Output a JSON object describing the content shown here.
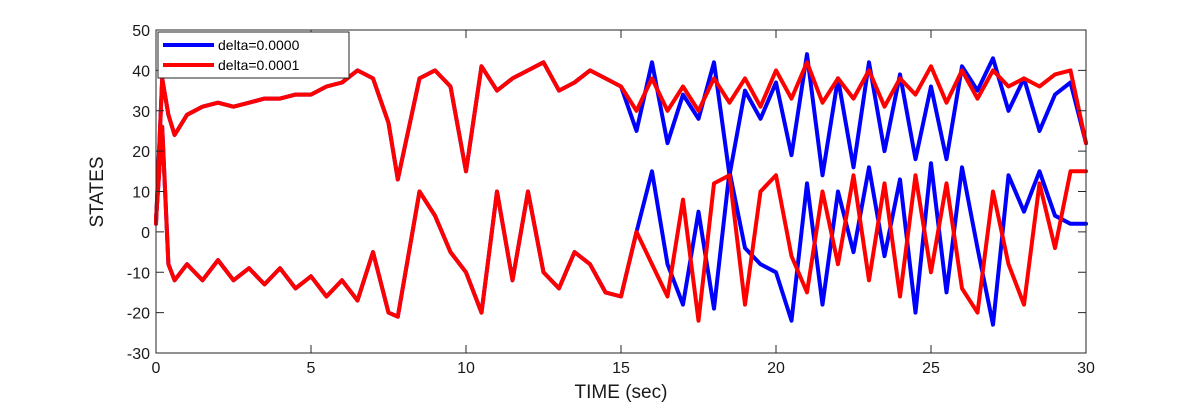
{
  "chart_data": {
    "type": "line",
    "title": "",
    "xlabel": "TIME (sec)",
    "ylabel": "STATES",
    "xlim": [
      0,
      30
    ],
    "ylim": [
      -30,
      50
    ],
    "xticks": [
      0,
      5,
      10,
      15,
      20,
      25,
      30
    ],
    "yticks": [
      -30,
      -20,
      -10,
      0,
      10,
      20,
      30,
      40,
      50
    ],
    "grid": false,
    "legend_position": "top-left",
    "series": [
      {
        "name": "delta=0.0000",
        "color": "#0000ff",
        "approx_traces": [
          {
            "x": [
              0,
              0.2,
              0.4,
              0.6,
              1.0,
              1.5,
              2.0,
              2.5,
              3.0,
              3.5,
              4.0,
              4.5,
              5.0,
              5.5,
              6.0,
              6.5,
              7.0,
              7.5,
              7.8,
              8.5,
              9.0,
              9.5,
              10.0,
              10.5,
              11.0,
              11.5,
              12.0,
              12.5,
              13.0,
              13.5,
              14.0,
              14.5,
              15.0,
              15.5,
              16.0,
              16.5,
              17.0,
              17.5,
              18.0,
              18.5,
              19.0,
              19.5,
              20.0,
              20.5,
              21.0,
              21.5,
              22.0,
              22.5,
              23.0,
              23.5,
              24.0,
              24.5,
              25.0,
              25.5,
              26.0,
              26.5,
              27.0,
              27.5,
              28.0,
              28.5,
              29.0,
              29.5,
              30.0
            ],
            "y": [
              2,
              38,
              29,
              24,
              29,
              31,
              32,
              31,
              32,
              33,
              33,
              34,
              34,
              36,
              37,
              40,
              38,
              27,
              13,
              38,
              40,
              36,
              15,
              41,
              35,
              38,
              40,
              42,
              35,
              37,
              40,
              38,
              36,
              25,
              42,
              22,
              34,
              28,
              42,
              14,
              35,
              28,
              37,
              19,
              44,
              14,
              38,
              16,
              42,
              20,
              39,
              18,
              36,
              18,
              41,
              35,
              43,
              30,
              38,
              25,
              34,
              37,
              22
            ]
          },
          {
            "x": [
              0,
              0.2,
              0.4,
              0.6,
              1.0,
              1.5,
              2.0,
              2.5,
              3.0,
              3.5,
              4.0,
              4.5,
              5.0,
              5.5,
              6.0,
              6.5,
              7.0,
              7.5,
              7.8,
              8.5,
              9.0,
              9.5,
              10.0,
              10.5,
              11.0,
              11.5,
              12.0,
              12.5,
              13.0,
              13.5,
              14.0,
              14.5,
              15.0,
              15.5,
              16.0,
              16.5,
              17.0,
              17.5,
              18.0,
              18.5,
              19.0,
              19.5,
              20.0,
              20.5,
              21.0,
              21.5,
              22.0,
              22.5,
              23.0,
              23.5,
              24.0,
              24.5,
              25.0,
              25.5,
              26.0,
              26.5,
              27.0,
              27.5,
              28.0,
              28.5,
              29.0,
              29.5,
              30.0
            ],
            "y": [
              3,
              26,
              -8,
              -12,
              -8,
              -12,
              -7,
              -12,
              -9,
              -13,
              -9,
              -14,
              -11,
              -16,
              -12,
              -17,
              -5,
              -20,
              -21,
              10,
              4,
              -5,
              -10,
              -20,
              10,
              -12,
              10,
              -10,
              -14,
              -5,
              -8,
              -15,
              -16,
              0,
              15,
              -8,
              -18,
              5,
              -19,
              15,
              -4,
              -8,
              -10,
              -22,
              12,
              -18,
              10,
              -5,
              16,
              -6,
              13,
              -20,
              17,
              -15,
              16,
              -4,
              -23,
              14,
              5,
              15,
              4,
              2,
              2
            ]
          }
        ]
      },
      {
        "name": "delta=0.0001",
        "color": "#ff0000",
        "approx_traces": [
          {
            "x": [
              0,
              0.2,
              0.4,
              0.6,
              1.0,
              1.5,
              2.0,
              2.5,
              3.0,
              3.5,
              4.0,
              4.5,
              5.0,
              5.5,
              6.0,
              6.5,
              7.0,
              7.5,
              7.8,
              8.5,
              9.0,
              9.5,
              10.0,
              10.5,
              11.0,
              11.5,
              12.0,
              12.5,
              13.0,
              13.5,
              14.0,
              14.5,
              15.0,
              15.5,
              16.0,
              16.5,
              17.0,
              17.5,
              18.0,
              18.5,
              19.0,
              19.5,
              20.0,
              20.5,
              21.0,
              21.5,
              22.0,
              22.5,
              23.0,
              23.5,
              24.0,
              24.5,
              25.0,
              25.5,
              26.0,
              26.5,
              27.0,
              27.5,
              28.0,
              28.5,
              29.0,
              29.5,
              30.0
            ],
            "y": [
              2,
              38,
              29,
              24,
              29,
              31,
              32,
              31,
              32,
              33,
              33,
              34,
              34,
              36,
              37,
              40,
              38,
              27,
              13,
              38,
              40,
              36,
              15,
              41,
              35,
              38,
              40,
              42,
              35,
              37,
              40,
              38,
              36,
              30,
              38,
              30,
              36,
              30,
              38,
              32,
              38,
              31,
              40,
              33,
              42,
              32,
              38,
              33,
              40,
              31,
              38,
              34,
              41,
              32,
              40,
              33,
              40,
              36,
              38,
              36,
              39,
              40,
              22
            ]
          },
          {
            "x": [
              0,
              0.2,
              0.4,
              0.6,
              1.0,
              1.5,
              2.0,
              2.5,
              3.0,
              3.5,
              4.0,
              4.5,
              5.0,
              5.5,
              6.0,
              6.5,
              7.0,
              7.5,
              7.8,
              8.5,
              9.0,
              9.5,
              10.0,
              10.5,
              11.0,
              11.5,
              12.0,
              12.5,
              13.0,
              13.5,
              14.0,
              14.5,
              15.0,
              15.5,
              16.0,
              16.5,
              17.0,
              17.5,
              18.0,
              18.5,
              19.0,
              19.5,
              20.0,
              20.5,
              21.0,
              21.5,
              22.0,
              22.5,
              23.0,
              23.5,
              24.0,
              24.5,
              25.0,
              25.5,
              26.0,
              26.5,
              27.0,
              27.5,
              28.0,
              28.5,
              29.0,
              29.5,
              30.0
            ],
            "y": [
              3,
              26,
              -8,
              -12,
              -8,
              -12,
              -7,
              -12,
              -9,
              -13,
              -9,
              -14,
              -11,
              -16,
              -12,
              -17,
              -5,
              -20,
              -21,
              10,
              4,
              -5,
              -10,
              -20,
              10,
              -12,
              10,
              -10,
              -14,
              -5,
              -8,
              -15,
              -16,
              0,
              -8,
              -16,
              8,
              -22,
              12,
              14,
              -18,
              10,
              14,
              -6,
              -15,
              10,
              -8,
              14,
              -12,
              12,
              -16,
              14,
              -10,
              12,
              -14,
              -20,
              10,
              -8,
              -18,
              12,
              -4,
              15,
              15
            ]
          }
        ]
      }
    ]
  }
}
